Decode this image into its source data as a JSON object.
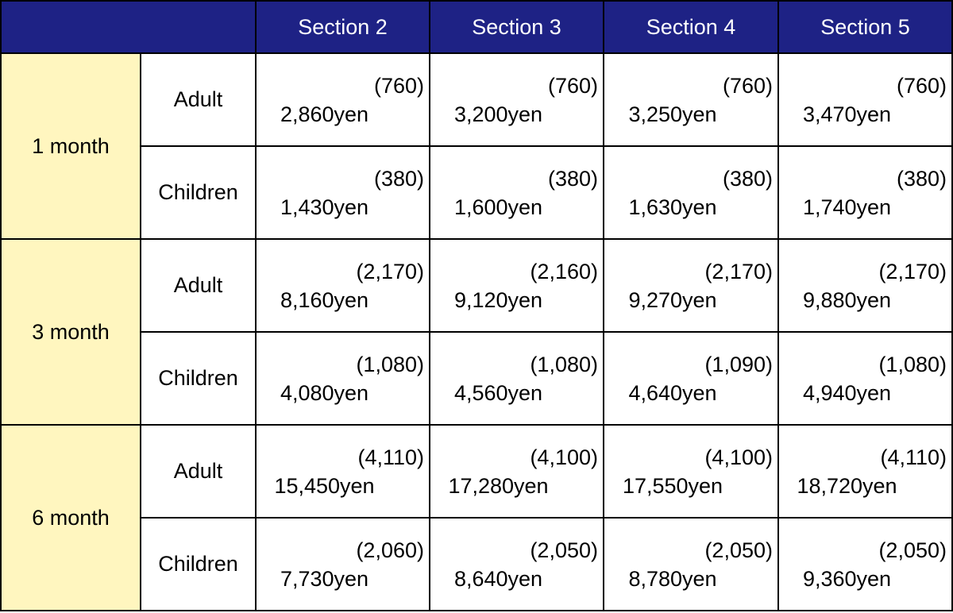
{
  "header": {
    "corner": "",
    "sections": [
      "Section 2",
      "Section 3",
      "Section 4",
      "Section 5"
    ]
  },
  "periods": [
    {
      "label": "1 month",
      "rows": [
        {
          "type": "Adult",
          "cells": [
            {
              "discount": "(760)",
              "price": "2,860yen"
            },
            {
              "discount": "(760)",
              "price": "3,200yen"
            },
            {
              "discount": "(760)",
              "price": "3,250yen"
            },
            {
              "discount": "(760)",
              "price": "3,470yen"
            }
          ]
        },
        {
          "type": "Children",
          "cells": [
            {
              "discount": "(380)",
              "price": "1,430yen"
            },
            {
              "discount": "(380)",
              "price": "1,600yen"
            },
            {
              "discount": "(380)",
              "price": "1,630yen"
            },
            {
              "discount": "(380)",
              "price": "1,740yen"
            }
          ]
        }
      ]
    },
    {
      "label": "3 month",
      "rows": [
        {
          "type": "Adult",
          "cells": [
            {
              "discount": "(2,170)",
              "price": "8,160yen"
            },
            {
              "discount": "(2,160)",
              "price": "9,120yen"
            },
            {
              "discount": "(2,170)",
              "price": "9,270yen"
            },
            {
              "discount": "(2,170)",
              "price": "9,880yen"
            }
          ]
        },
        {
          "type": "Children",
          "cells": [
            {
              "discount": "(1,080)",
              "price": "4,080yen"
            },
            {
              "discount": "(1,080)",
              "price": "4,560yen"
            },
            {
              "discount": "(1,090)",
              "price": "4,640yen"
            },
            {
              "discount": "(1,080)",
              "price": "4,940yen"
            }
          ]
        }
      ]
    },
    {
      "label": "6 month",
      "rows": [
        {
          "type": "Adult",
          "cells": [
            {
              "discount": "(4,110)",
              "price": "15,450yen"
            },
            {
              "discount": "(4,100)",
              "price": "17,280yen"
            },
            {
              "discount": "(4,100)",
              "price": "17,550yen"
            },
            {
              "discount": "(4,110)",
              "price": "18,720yen"
            }
          ]
        },
        {
          "type": "Children",
          "cells": [
            {
              "discount": "(2,060)",
              "price": "7,730yen"
            },
            {
              "discount": "(2,050)",
              "price": "8,640yen"
            },
            {
              "discount": "(2,050)",
              "price": "8,780yen"
            },
            {
              "discount": "(2,050)",
              "price": "9,360yen"
            }
          ]
        }
      ]
    }
  ],
  "colors": {
    "header_bg": "#1e2285",
    "header_text": "#ffffff",
    "period_bg": "#fff6bf",
    "border": "#000000"
  }
}
